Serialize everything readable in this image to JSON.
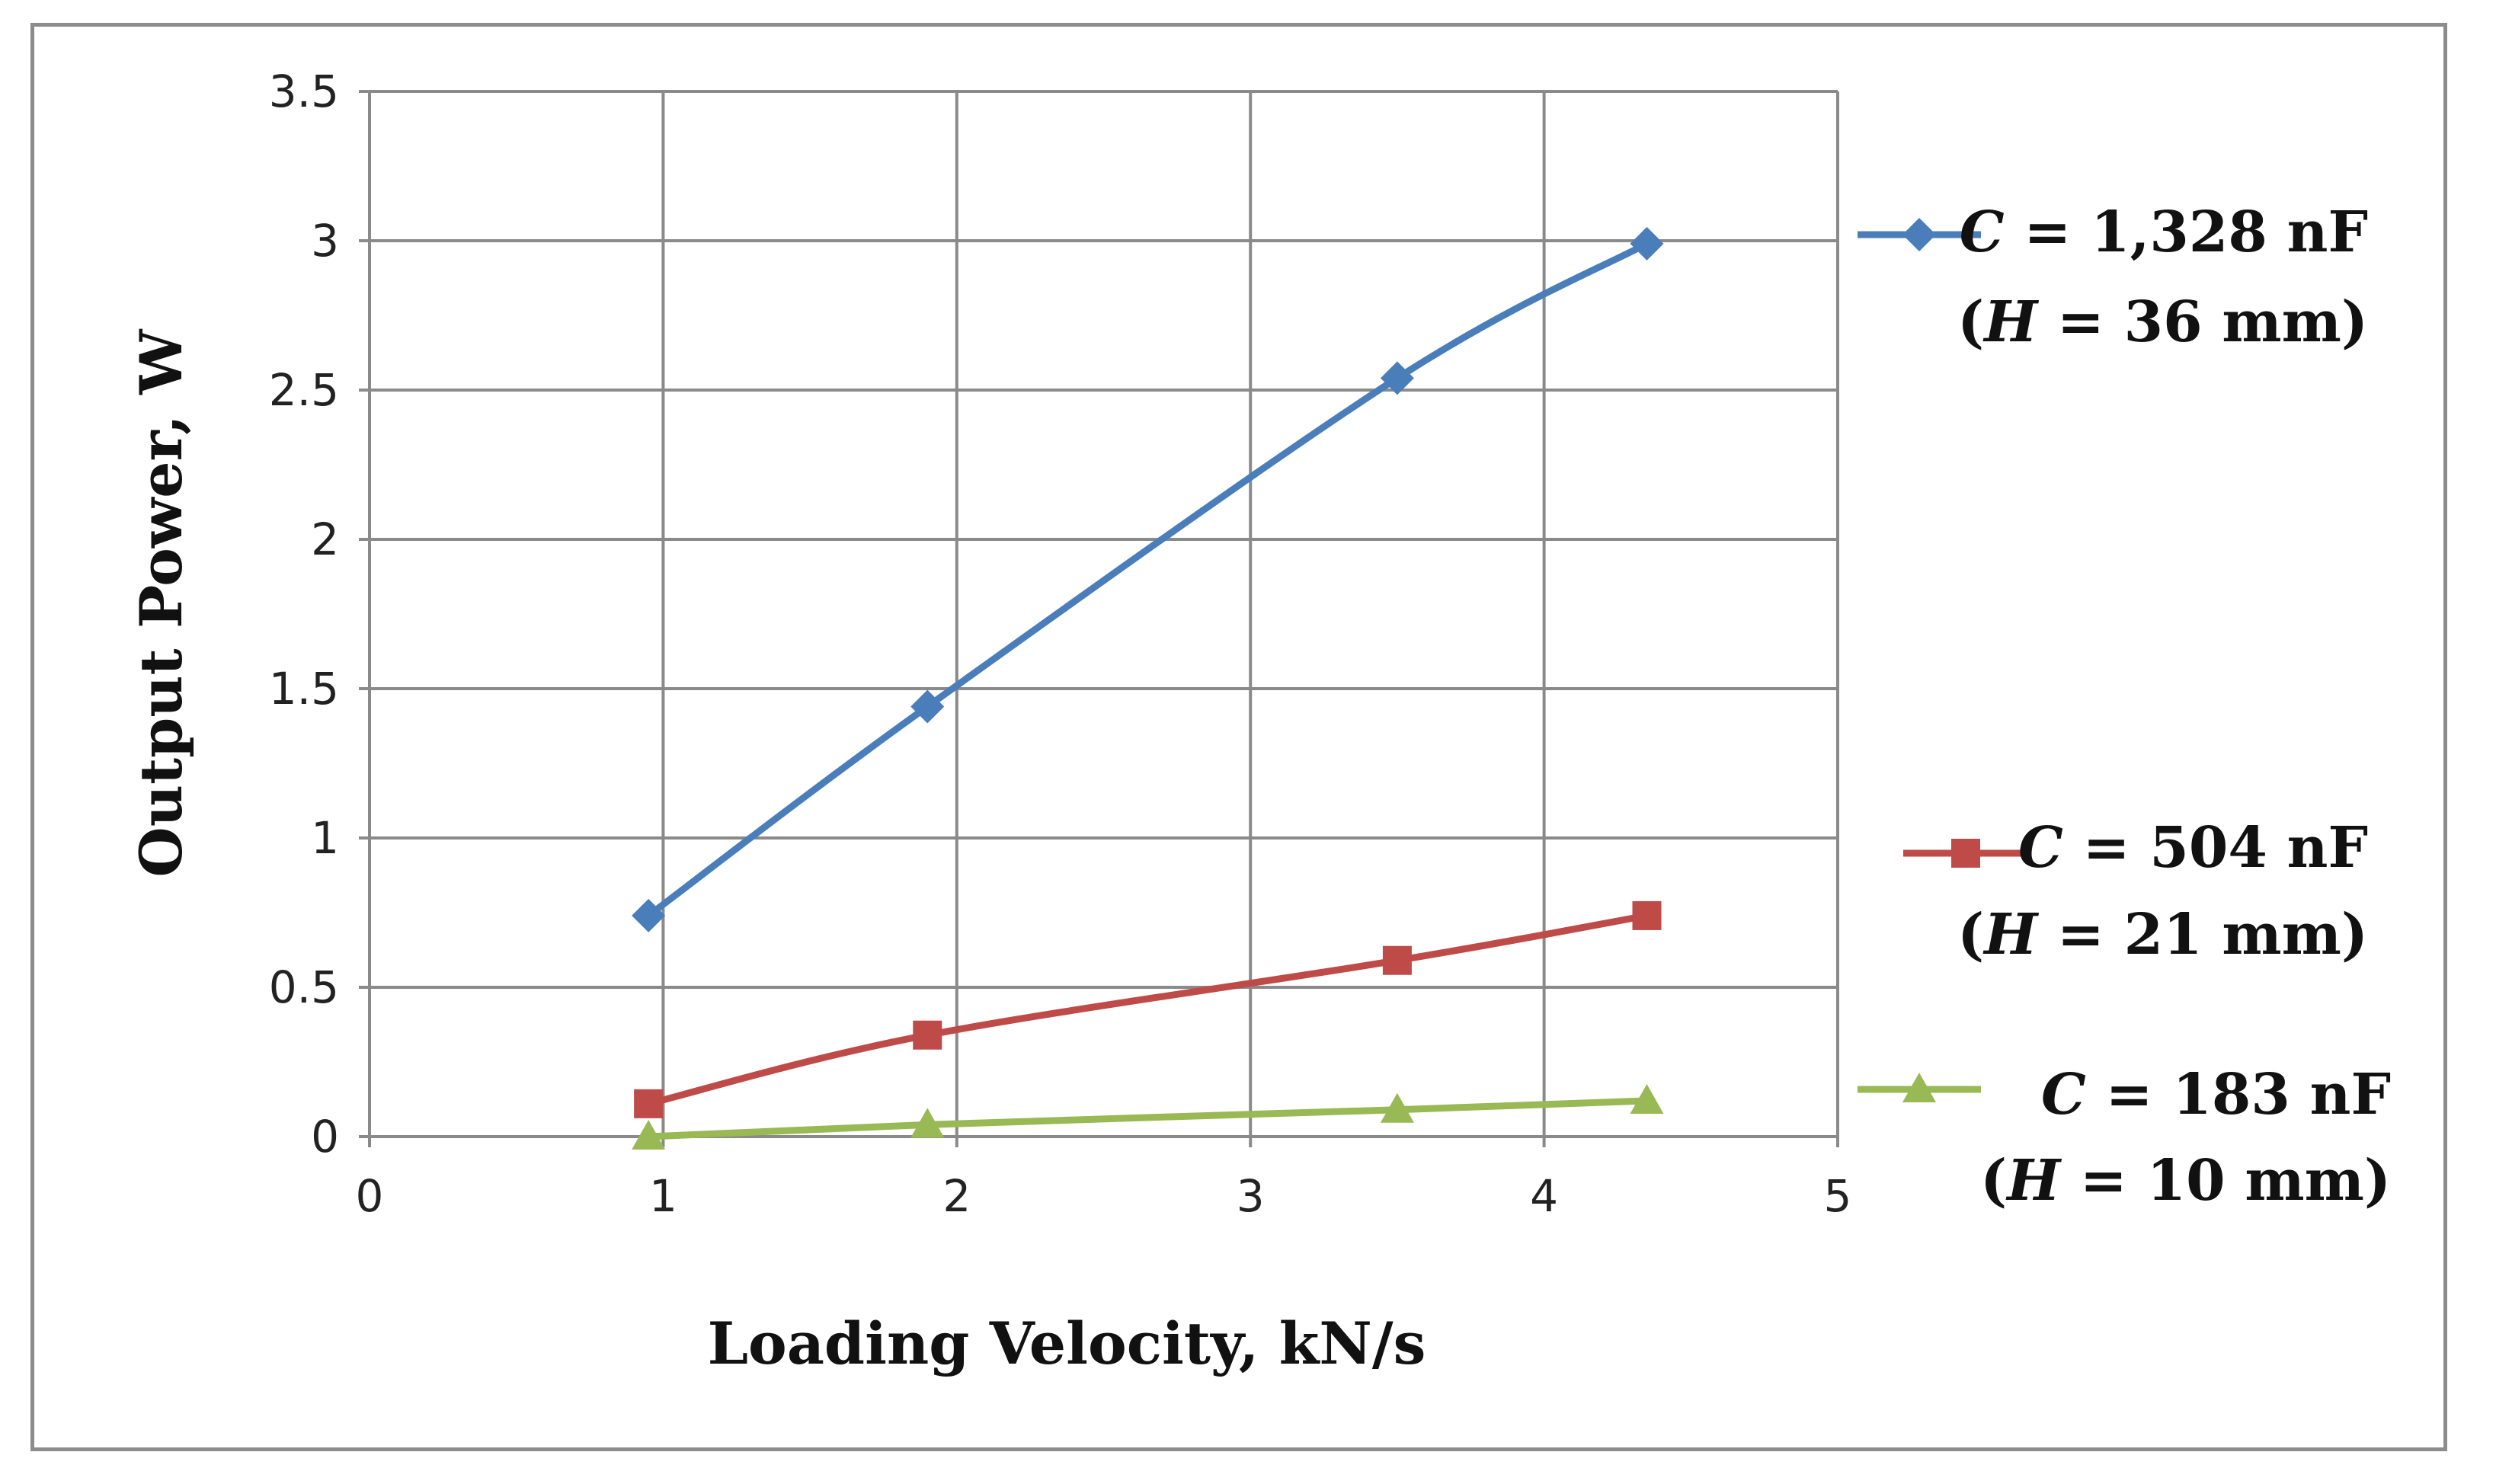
{
  "chart_data": {
    "type": "line",
    "title": "",
    "xlabel": "Loading Velocity, kN/s",
    "ylabel": "Output Power, W",
    "xlim": [
      0,
      5
    ],
    "ylim": [
      0,
      3.5
    ],
    "xticks": [
      "0",
      "1",
      "2",
      "3",
      "4",
      "5"
    ],
    "yticks": [
      "0",
      "0.5",
      "1",
      "1.5",
      "2",
      "2.5",
      "3",
      "3.5"
    ],
    "grid": true,
    "legend_position": "right",
    "series": [
      {
        "name": "C = 1,328 nF (H = 36 mm)",
        "legend_line1": {
          "sym": "C",
          "rest": " = 1,328 nF"
        },
        "legend_line2": {
          "open": "(",
          "sym": "H",
          "rest": " = 36 mm)"
        },
        "color": "#4a7ebb",
        "marker": "diamond",
        "x": [
          0.95,
          1.9,
          3.5,
          4.35
        ],
        "y": [
          0.74,
          1.44,
          2.54,
          2.99
        ]
      },
      {
        "name": "C = 504 nF (H = 21 mm)",
        "legend_line1": {
          "sym": "C",
          "rest": " = 504 nF"
        },
        "legend_line2": {
          "open": "(",
          "sym": "H",
          "rest": " = 21 mm)"
        },
        "color": "#be4b48",
        "marker": "square",
        "x": [
          0.95,
          1.9,
          3.5,
          4.35
        ],
        "y": [
          0.11,
          0.34,
          0.59,
          0.74
        ]
      },
      {
        "name": "C = 183 nF (H = 10 mm)",
        "legend_line1": {
          "sym": "C",
          "rest": " = 183 nF"
        },
        "legend_line2": {
          "open": "(",
          "sym": "H",
          "rest": " = 10 mm)"
        },
        "color": "#98b954",
        "marker": "triangle",
        "x": [
          0.95,
          1.9,
          3.5,
          4.35
        ],
        "y": [
          0.0,
          0.04,
          0.09,
          0.12
        ]
      }
    ]
  }
}
